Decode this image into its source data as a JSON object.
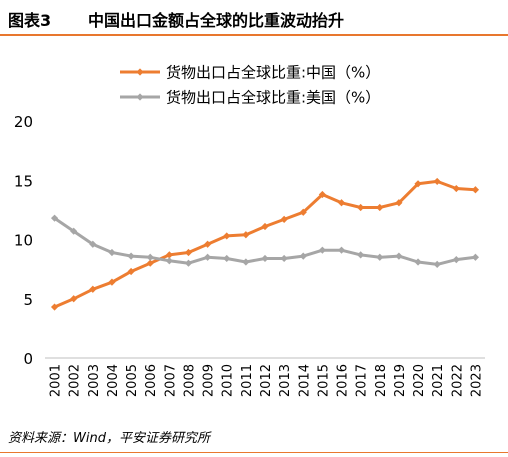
{
  "header": {
    "figure_number": "图表3",
    "title": "中国出口金额占全球的比重波动抬升"
  },
  "source": "资料来源：Wind，平安证券研究所",
  "colors": {
    "china": "#ed7d31",
    "us": "#a6a6a6",
    "accent_rule": "#e8772e"
  },
  "chart_data": {
    "type": "line",
    "title": "",
    "xlabel": "",
    "ylabel": "",
    "x": [
      "2001",
      "2002",
      "2003",
      "2004",
      "2005",
      "2006",
      "2007",
      "2008",
      "2009",
      "2010",
      "2011",
      "2012",
      "2013",
      "2014",
      "2015",
      "2016",
      "2017",
      "2018",
      "2019",
      "2020",
      "2021",
      "2022",
      "2023"
    ],
    "ylim": [
      0,
      20
    ],
    "yticks": [
      "0",
      "5",
      "10",
      "15",
      "20"
    ],
    "grid": false,
    "legend_position": "top",
    "series": [
      {
        "name": "货物出口占全球比重:中国（%）",
        "color": "#ed7d31",
        "values": [
          4.3,
          5.0,
          5.8,
          6.4,
          7.3,
          8.0,
          8.7,
          8.9,
          9.6,
          10.3,
          10.4,
          11.1,
          11.7,
          12.3,
          13.8,
          13.1,
          12.7,
          12.7,
          13.1,
          14.7,
          14.9,
          14.3,
          14.2
        ]
      },
      {
        "name": "货物出口占全球比重:美国（%）",
        "color": "#a6a6a6",
        "values": [
          11.8,
          10.7,
          9.6,
          8.9,
          8.6,
          8.5,
          8.2,
          8.0,
          8.5,
          8.4,
          8.1,
          8.4,
          8.4,
          8.6,
          9.1,
          9.1,
          8.7,
          8.5,
          8.6,
          8.1,
          7.9,
          8.3,
          8.5
        ]
      }
    ]
  }
}
